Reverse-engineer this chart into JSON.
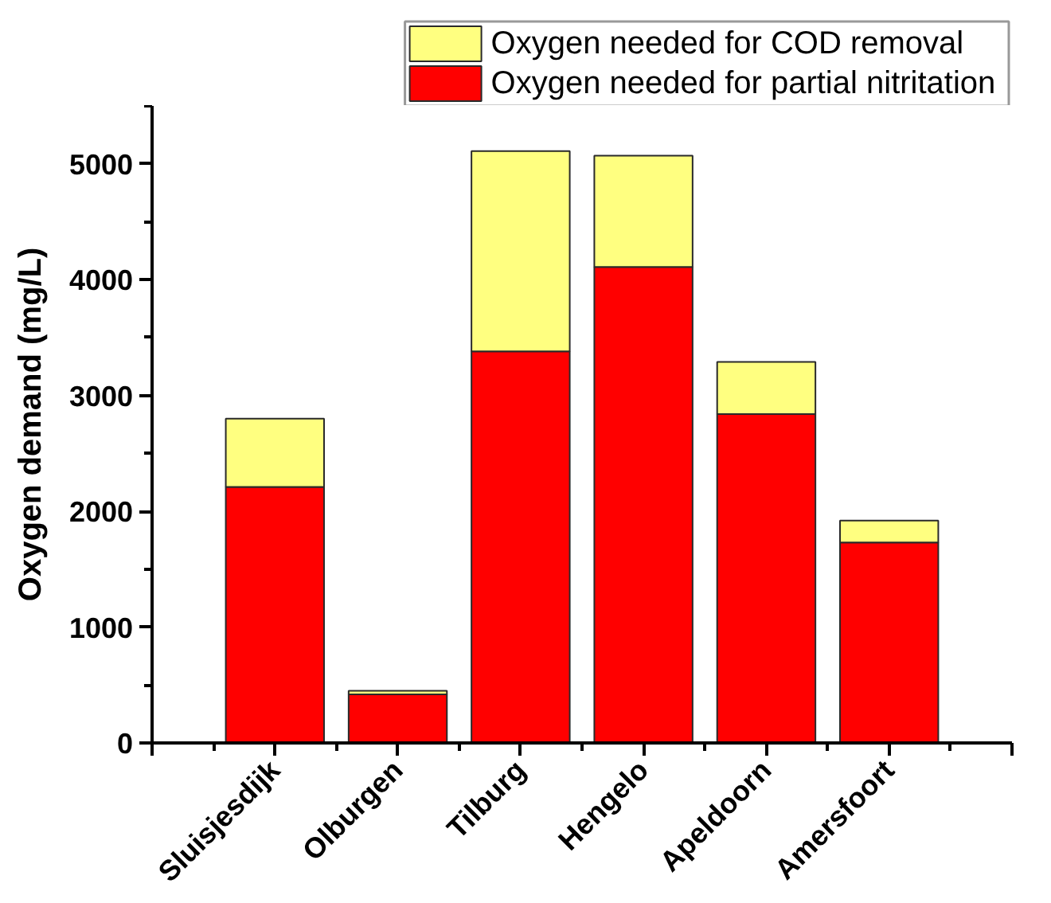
{
  "chart_data": {
    "type": "bar",
    "stacked": true,
    "categories": [
      "Sluisjesdijk",
      "Olburgen",
      "Tilburg",
      "Hengelo",
      "Apeldoorn",
      "Amersfoort"
    ],
    "series": [
      {
        "name": "Oxygen needed for partial nitritation",
        "color": "#ff0000",
        "values": [
          2210,
          420,
          3380,
          4110,
          2840,
          1730
        ]
      },
      {
        "name": "Oxygen needed for COD removal",
        "color": "#ffff80",
        "values": [
          590,
          30,
          1730,
          960,
          450,
          190
        ]
      }
    ],
    "ylabel": "Oxygen demand (mg/L)",
    "ylim": [
      0,
      5500
    ],
    "yticks": [
      0,
      {
        "value": 500,
        "label": null
      },
      1000,
      {
        "value": 1500,
        "label": null
      },
      2000,
      {
        "value": 2500,
        "label": null
      },
      3000,
      {
        "value": 3500,
        "label": null
      },
      4000,
      {
        "value": 4500,
        "label": null
      },
      5000,
      {
        "value": 5500,
        "label": null
      }
    ],
    "legend": "top right"
  }
}
